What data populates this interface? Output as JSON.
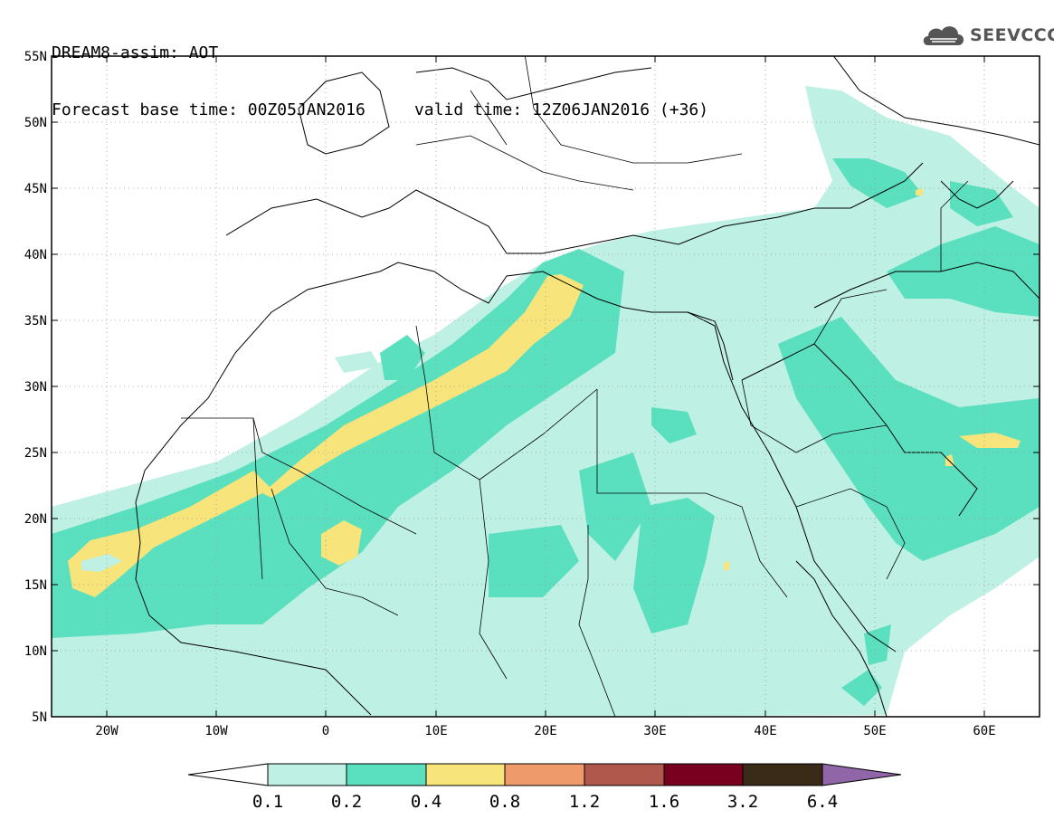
{
  "header": {
    "line1": "DREAM8-assim: AOT",
    "line2_base": "Forecast base time: 00Z05JAN2016",
    "line2_valid": "valid time: 12Z06JAN2016 (+36)",
    "brand": "SEEVCCC",
    "brand_icon": "cloud-logo-icon"
  },
  "map": {
    "lon_range": [
      -25,
      65
    ],
    "lat_range": [
      5,
      55
    ],
    "lat_labels": [
      "55N",
      "50N",
      "45N",
      "40N",
      "35N",
      "30N",
      "25N",
      "20N",
      "15N",
      "10N",
      "5N"
    ],
    "lon_labels": [
      "20W",
      "10W",
      "0",
      "10E",
      "20E",
      "30E",
      "40E",
      "50E",
      "60E"
    ]
  },
  "colorbar": {
    "colors": [
      "#ffffff",
      "#bff0e4",
      "#5ae0bf",
      "#f7e47a",
      "#ee9a6a",
      "#b0584c",
      "#7a0020",
      "#3a2a18",
      "#9066a8"
    ],
    "labels": [
      "0.1",
      "0.2",
      "0.4",
      "0.8",
      "1.2",
      "1.6",
      "3.2",
      "6.4"
    ]
  }
}
